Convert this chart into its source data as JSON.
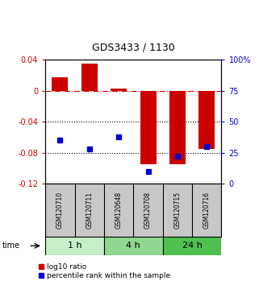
{
  "title": "GDS3433 / 1130",
  "samples": [
    "GSM120710",
    "GSM120711",
    "GSM120648",
    "GSM120708",
    "GSM120715",
    "GSM120716"
  ],
  "groups": [
    {
      "label": "1 h",
      "indices": [
        0,
        1
      ],
      "color": "#c8f0c8"
    },
    {
      "label": "4 h",
      "indices": [
        2,
        3
      ],
      "color": "#90d890"
    },
    {
      "label": "24 h",
      "indices": [
        4,
        5
      ],
      "color": "#50c050"
    }
  ],
  "log10_ratio": [
    0.018,
    0.035,
    0.003,
    -0.095,
    -0.095,
    -0.075
  ],
  "percentile_rank": [
    35,
    28,
    38,
    10,
    22,
    30
  ],
  "ylim_left": [
    -0.12,
    0.04
  ],
  "ylim_right": [
    0,
    100
  ],
  "yticks_left": [
    0.04,
    0.0,
    -0.04,
    -0.08,
    -0.12
  ],
  "ytick_left_labels": [
    "0.04",
    "0",
    "-0.04",
    "-0.08",
    "-0.12"
  ],
  "yticks_right": [
    100,
    75,
    50,
    25,
    0
  ],
  "ytick_right_labels": [
    "100%",
    "75",
    "50",
    "25",
    "0"
  ],
  "hlines": [
    0.0,
    -0.04,
    -0.08
  ],
  "hline_styles": [
    "dashdot",
    "dotted",
    "dotted"
  ],
  "hline_colors": [
    "#cc0000",
    "black",
    "black"
  ],
  "bar_color": "#cc0000",
  "dot_color": "#0000cc",
  "title_fontsize": 9,
  "tick_fontsize": 7,
  "label_fontsize": 5.5,
  "group_fontsize": 8,
  "legend_fontsize": 6.5,
  "background_color": "#ffffff",
  "left_tick_color": "#cc0000",
  "right_tick_color": "#0000cc"
}
